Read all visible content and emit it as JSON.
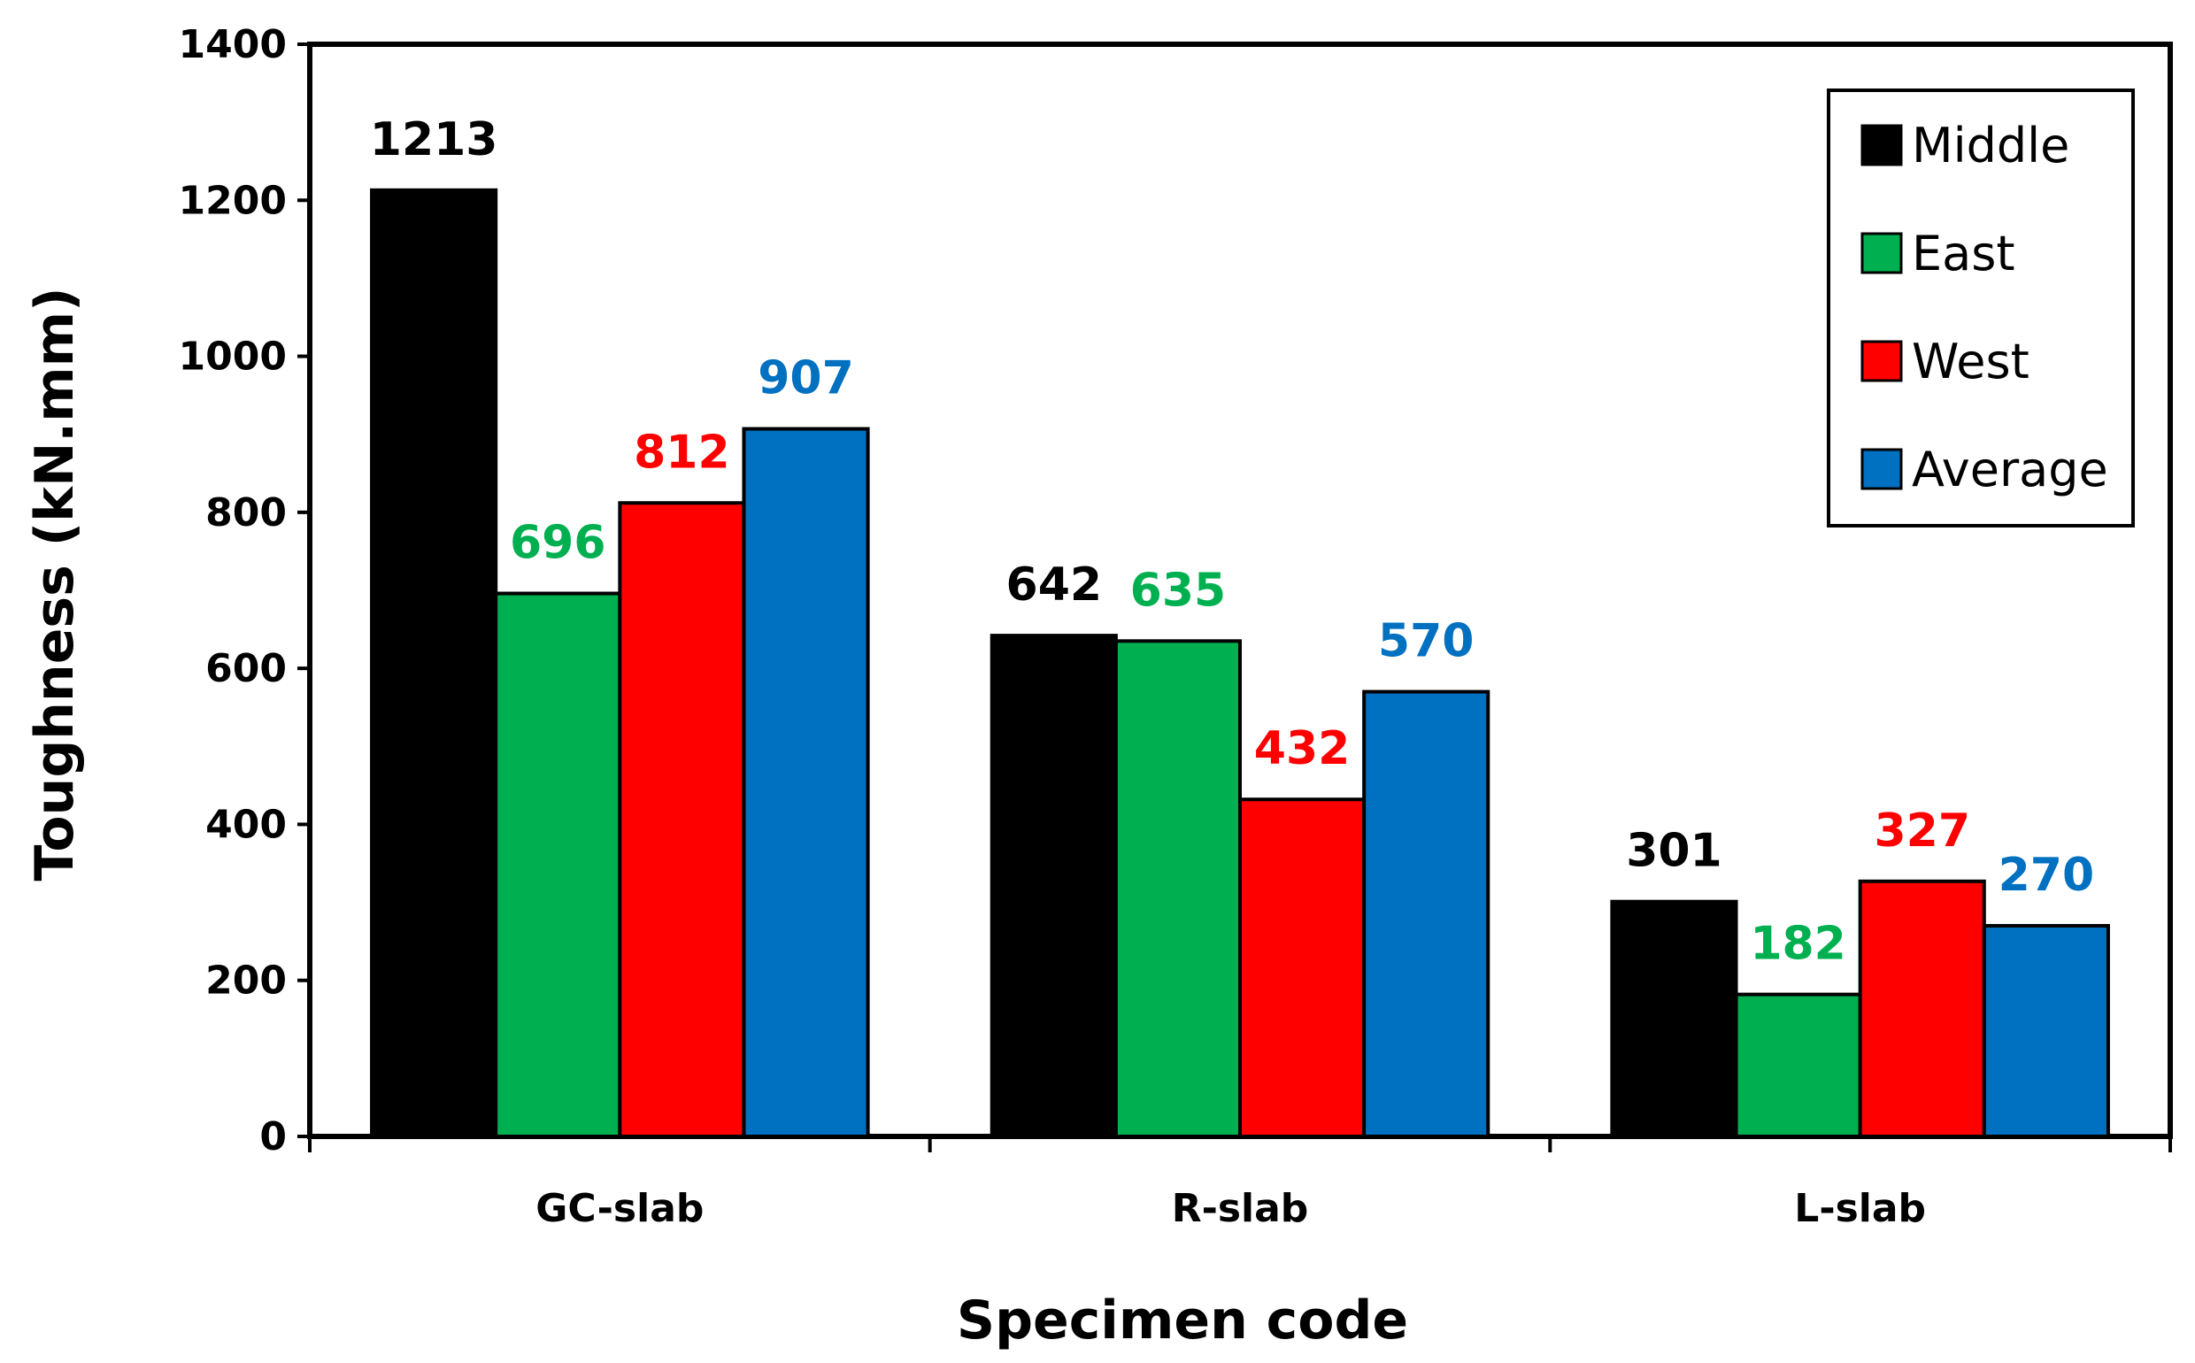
{
  "chart_data": {
    "type": "bar",
    "title": "",
    "xlabel": "Specimen code",
    "ylabel": "Toughness (kN.mm)",
    "ylim": [
      0,
      1400
    ],
    "yticks": [
      0,
      200,
      400,
      600,
      800,
      1000,
      1200,
      1400
    ],
    "grid": false,
    "legend_position": "top-right",
    "categories": [
      "GC-slab",
      "R-slab",
      "L-slab"
    ],
    "series": [
      {
        "name": "Middle",
        "color": "#000000",
        "label_color": "#000000",
        "values": [
          1213,
          642,
          301
        ]
      },
      {
        "name": "East",
        "color": "#00b050",
        "label_color": "#00b050",
        "values": [
          696,
          635,
          182
        ]
      },
      {
        "name": "West",
        "color": "#ff0000",
        "label_color": "#ff0000",
        "values": [
          812,
          432,
          327
        ]
      },
      {
        "name": "Average",
        "color": "#0070c0",
        "label_color": "#0070c0",
        "values": [
          907,
          570,
          270
        ]
      }
    ]
  }
}
